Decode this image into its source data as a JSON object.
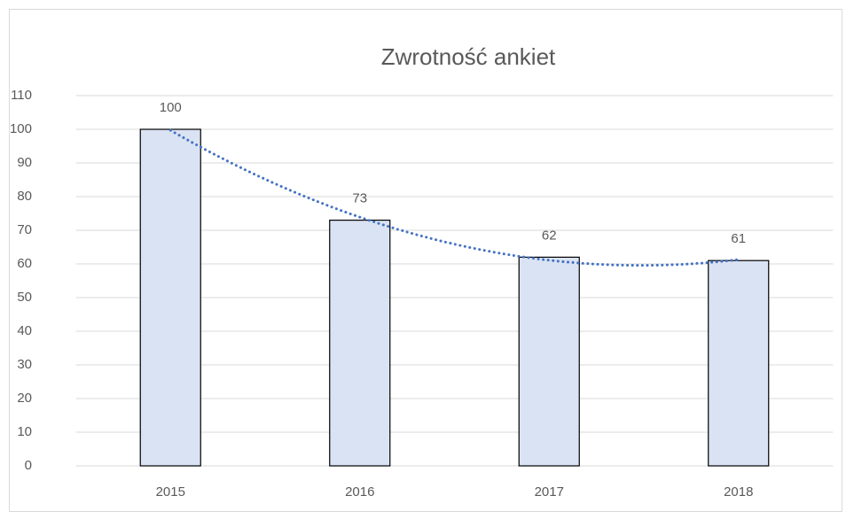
{
  "chart_data": {
    "type": "bar",
    "title": "Zwrotność ankiet",
    "categories": [
      "2015",
      "2016",
      "2017",
      "2018"
    ],
    "values": [
      100,
      73,
      62,
      61
    ],
    "color": "#dae3f3",
    "edge_color": "#000000",
    "ylim": [
      0,
      110
    ],
    "yticks": [
      0,
      10,
      20,
      30,
      40,
      50,
      60,
      70,
      80,
      90,
      100,
      110
    ],
    "grid": true,
    "data_labels": true,
    "trendline": {
      "type": "polynomial",
      "order": 2,
      "color": "#4472c4",
      "style": "dotted"
    }
  }
}
